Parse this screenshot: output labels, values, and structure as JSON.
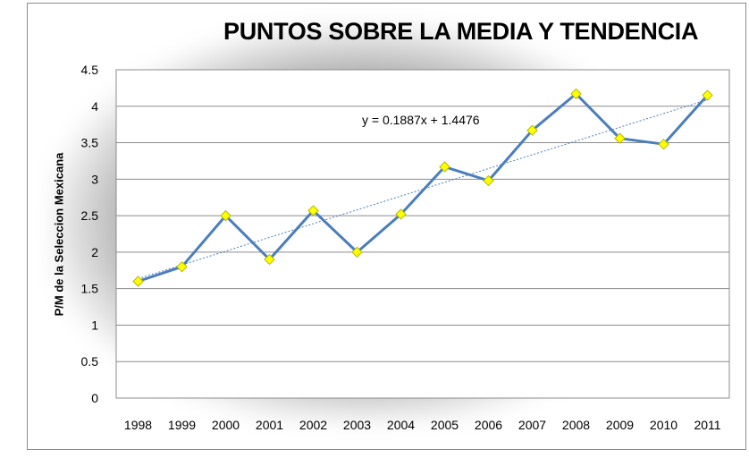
{
  "chart_data": {
    "type": "line",
    "title": "PUNTOS SOBRE LA MEDIA Y TENDENCIA",
    "ylabel": "P/M  de la Seleccion Mexicana",
    "xlabel": "",
    "categories": [
      "1998",
      "1999",
      "2000",
      "2001",
      "2002",
      "2003",
      "2004",
      "2005",
      "2006",
      "2007",
      "2008",
      "2009",
      "2010",
      "2011"
    ],
    "series": [
      {
        "values": [
          1.6,
          1.8,
          2.5,
          1.9,
          2.57,
          2.0,
          2.52,
          3.17,
          2.98,
          3.67,
          4.17,
          3.56,
          3.48,
          4.15
        ]
      }
    ],
    "trendline": {
      "type": "linear",
      "slope": 0.1887,
      "intercept": 1.4476,
      "equation": "y = 0.1887x + 1.4476"
    },
    "ylim": [
      0,
      4.5
    ],
    "yticks": [
      "0",
      "0.5",
      "1",
      "1.5",
      "2",
      "2.5",
      "3",
      "3.5",
      "4",
      "4.5"
    ],
    "grid": true,
    "colors": {
      "line": "#4a7ebb",
      "marker": "#ffff00",
      "marker_edge": "#b8b800",
      "trend": "#4a7ebb"
    }
  }
}
